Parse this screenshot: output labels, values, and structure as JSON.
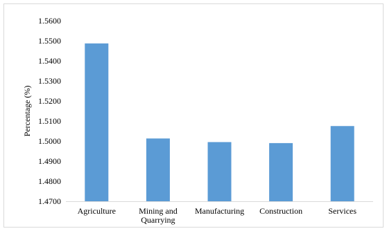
{
  "chart_data": {
    "type": "bar",
    "title": "",
    "xlabel": "",
    "ylabel": "Percentage (%)",
    "ylim": [
      1.47,
      1.56
    ],
    "yticks": [
      "1.4700",
      "1.4800",
      "1.4900",
      "1.5000",
      "1.5100",
      "1.5200",
      "1.5300",
      "1.5400",
      "1.5500",
      "1.5600"
    ],
    "categories": [
      [
        "Agriculture"
      ],
      [
        "Mining and",
        "Quarrying"
      ],
      [
        "Manufacturing"
      ],
      [
        "Construction"
      ],
      [
        "Services"
      ]
    ],
    "values": [
      1.5487,
      1.5013,
      1.4995,
      1.499,
      1.5075
    ],
    "bar_color": "#5b9bd5",
    "grid": false,
    "legend": "none"
  }
}
